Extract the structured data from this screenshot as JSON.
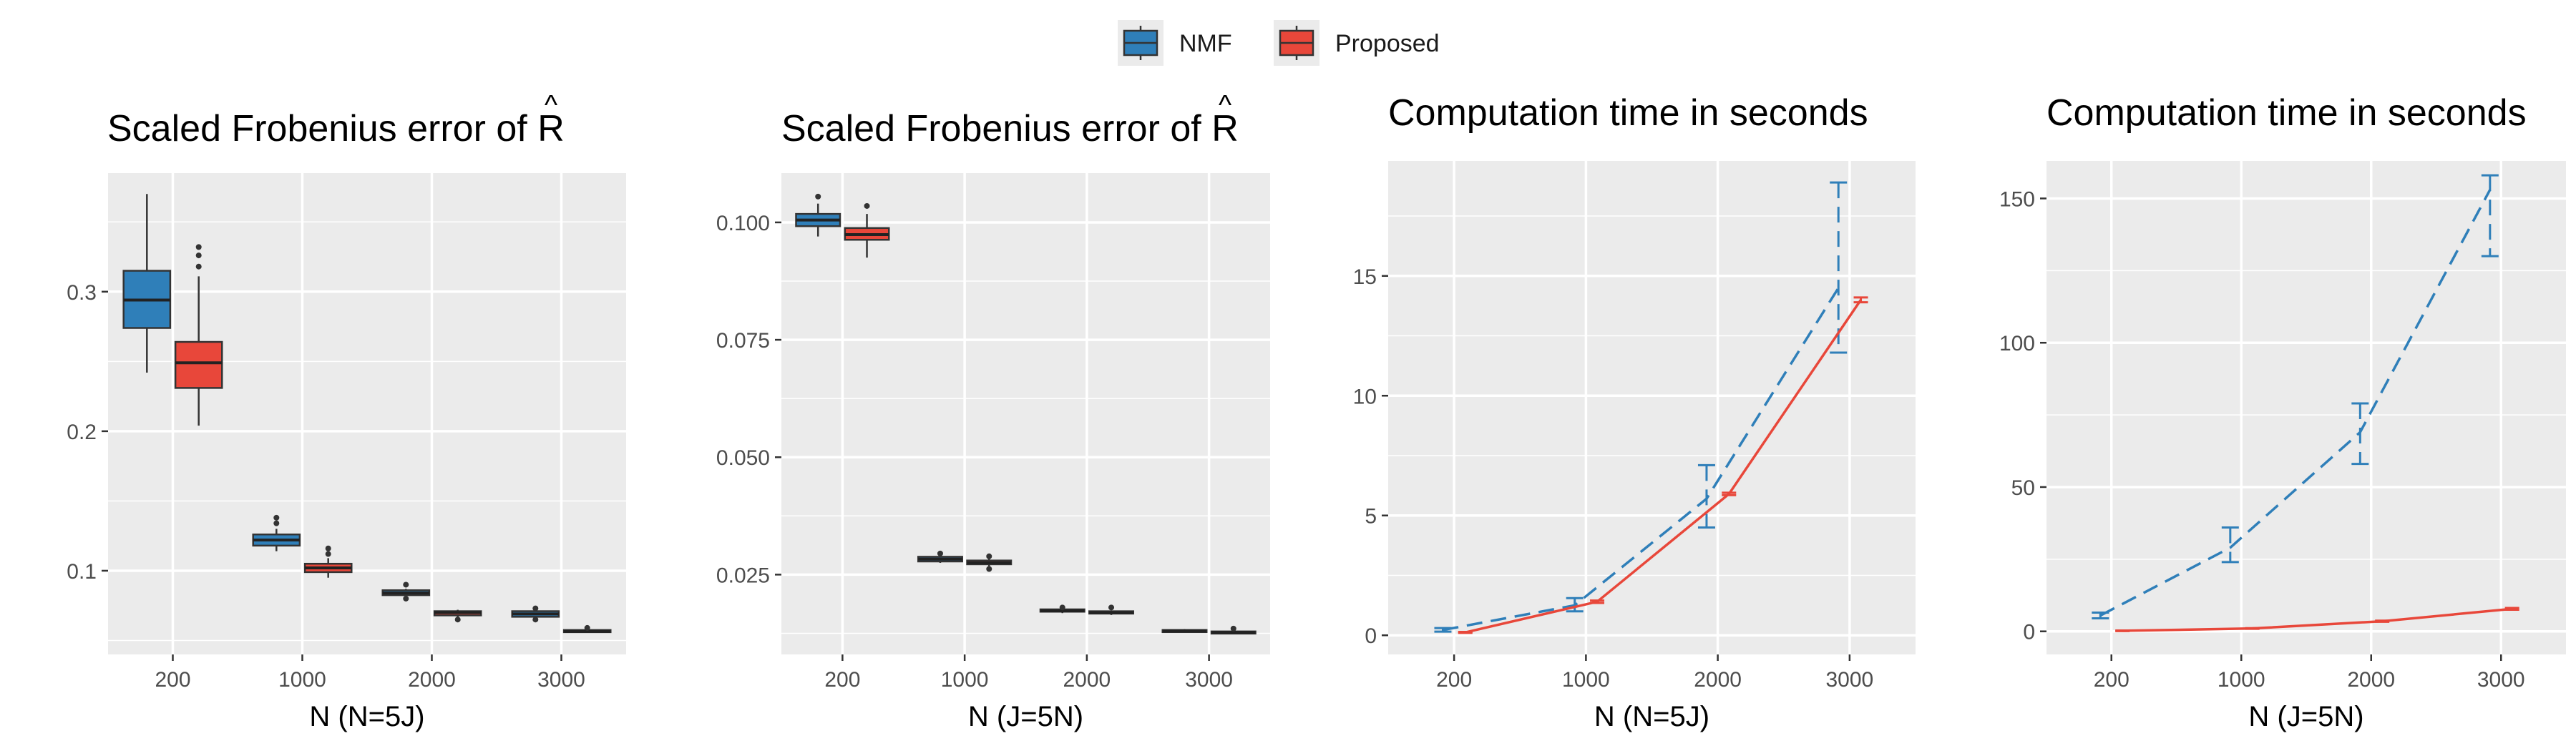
{
  "colors": {
    "nmf": "#2f7fb9",
    "proposed": "#e8473a",
    "panel_bg": "#ebebeb",
    "grid": "#ffffff"
  },
  "legend": {
    "items": [
      {
        "label": "NMF",
        "color": "#2f7fb9"
      },
      {
        "label": "Proposed",
        "color": "#e8473a"
      }
    ]
  },
  "panels": [
    {
      "title_text": "Scaled Frobenius error of ",
      "title_symbol": "R",
      "title_symbol_hat": "^",
      "xlabel": "N (N=5J)"
    },
    {
      "title_text": "Scaled Frobenius error of ",
      "title_symbol": "R",
      "title_symbol_hat": "^",
      "xlabel": "N (J=5N)"
    },
    {
      "title_text": "Computation time in seconds",
      "xlabel": "N (N=5J)"
    },
    {
      "title_text": "Computation time in seconds",
      "xlabel": "N (J=5N)"
    }
  ],
  "chart_data": [
    {
      "type": "box",
      "title": "Scaled Frobenius error of R̂",
      "xlabel": "N (N=5J)",
      "categories": [
        "200",
        "1000",
        "2000",
        "3000"
      ],
      "ylim": [
        0.04,
        0.385
      ],
      "yticks": [
        0.1,
        0.2,
        0.3
      ],
      "ytick_labels": [
        "0.1",
        "0.2",
        "0.3"
      ],
      "grid": true,
      "series": [
        {
          "name": "NMF",
          "boxes": [
            {
              "min": 0.242,
              "q1": 0.274,
              "median": 0.294,
              "q3": 0.315,
              "max": 0.37,
              "outliers": []
            },
            {
              "min": 0.114,
              "q1": 0.118,
              "median": 0.122,
              "q3": 0.126,
              "max": 0.13,
              "outliers": [
                0.134,
                0.138
              ]
            },
            {
              "min": 0.082,
              "q1": 0.0825,
              "median": 0.084,
              "q3": 0.086,
              "max": 0.087,
              "outliers": [
                0.08,
                0.09
              ]
            },
            {
              "min": 0.066,
              "q1": 0.067,
              "median": 0.069,
              "q3": 0.071,
              "max": 0.072,
              "outliers": [
                0.065,
                0.073
              ]
            }
          ]
        },
        {
          "name": "Proposed",
          "boxes": [
            {
              "min": 0.204,
              "q1": 0.231,
              "median": 0.249,
              "q3": 0.264,
              "max": 0.311,
              "outliers": [
                0.318,
                0.326,
                0.332
              ]
            },
            {
              "min": 0.095,
              "q1": 0.099,
              "median": 0.102,
              "q3": 0.105,
              "max": 0.109,
              "outliers": [
                0.112,
                0.116
              ]
            },
            {
              "min": 0.066,
              "q1": 0.068,
              "median": 0.07,
              "q3": 0.071,
              "max": 0.072,
              "outliers": [
                0.065
              ]
            },
            {
              "min": 0.0555,
              "q1": 0.056,
              "median": 0.0565,
              "q3": 0.0575,
              "max": 0.058,
              "outliers": [
                0.059
              ]
            }
          ]
        }
      ]
    },
    {
      "type": "box",
      "title": "Scaled Frobenius error of R̂",
      "xlabel": "N (J=5N)",
      "categories": [
        "200",
        "1000",
        "2000",
        "3000"
      ],
      "ylim": [
        0.008,
        0.1105
      ],
      "yticks": [
        0.025,
        0.05,
        0.075,
        0.1
      ],
      "ytick_labels": [
        "0.025",
        "0.050",
        "0.075",
        "0.100"
      ],
      "grid": true,
      "series": [
        {
          "name": "NMF",
          "boxes": [
            {
              "min": 0.097,
              "q1": 0.0992,
              "median": 0.1005,
              "q3": 0.1018,
              "max": 0.104,
              "outliers": [
                0.1055
              ]
            },
            {
              "min": 0.0275,
              "q1": 0.0278,
              "median": 0.0283,
              "q3": 0.0288,
              "max": 0.029,
              "outliers": [
                0.0295
              ]
            },
            {
              "min": 0.0168,
              "q1": 0.0171,
              "median": 0.0173,
              "q3": 0.0176,
              "max": 0.0178,
              "outliers": [
                0.018
              ]
            },
            {
              "min": 0.0128,
              "q1": 0.0129,
              "median": 0.013,
              "q3": 0.0132,
              "max": 0.0134,
              "outliers": []
            }
          ]
        },
        {
          "name": "Proposed",
          "boxes": [
            {
              "min": 0.0925,
              "q1": 0.0963,
              "median": 0.0974,
              "q3": 0.0988,
              "max": 0.1018,
              "outliers": [
                0.1035
              ]
            },
            {
              "min": 0.0268,
              "q1": 0.0272,
              "median": 0.0275,
              "q3": 0.028,
              "max": 0.0284,
              "outliers": [
                0.0289,
                0.0262
              ]
            },
            {
              "min": 0.0164,
              "q1": 0.0167,
              "median": 0.0169,
              "q3": 0.0172,
              "max": 0.0174,
              "outliers": [
                0.018
              ]
            },
            {
              "min": 0.0123,
              "q1": 0.0125,
              "median": 0.0127,
              "q3": 0.0129,
              "max": 0.0131,
              "outliers": [
                0.0135
              ]
            }
          ]
        }
      ]
    },
    {
      "type": "line",
      "title": "Computation time in seconds",
      "xlabel": "N (N=5J)",
      "categories": [
        "200",
        "1000",
        "2000",
        "3000"
      ],
      "ylim": [
        -0.8,
        19.8
      ],
      "yticks": [
        0,
        5,
        10,
        15
      ],
      "ytick_labels": [
        "0",
        "5",
        "10",
        "15"
      ],
      "grid": true,
      "series": [
        {
          "name": "NMF",
          "line": "dashed",
          "values": [
            0.22,
            1.25,
            5.7,
            14.5
          ],
          "err_low": [
            0.15,
            1.0,
            4.5,
            11.8
          ],
          "err_high": [
            0.3,
            1.55,
            7.1,
            18.9
          ]
        },
        {
          "name": "Proposed",
          "line": "solid",
          "values": [
            0.12,
            1.4,
            5.9,
            14.0
          ],
          "err_low": [
            0.1,
            1.35,
            5.85,
            13.9
          ],
          "err_high": [
            0.14,
            1.45,
            5.95,
            14.1
          ]
        }
      ]
    },
    {
      "type": "line",
      "title": "Computation time in seconds",
      "xlabel": "N (J=5N)",
      "categories": [
        "200",
        "1000",
        "2000",
        "3000"
      ],
      "ylim": [
        -8,
        163
      ],
      "yticks": [
        0,
        50,
        100,
        150
      ],
      "ytick_labels": [
        "0",
        "50",
        "100",
        "150"
      ],
      "grid": true,
      "series": [
        {
          "name": "NMF",
          "line": "dashed",
          "values": [
            5.5,
            29,
            69,
            153
          ],
          "err_low": [
            4.5,
            24,
            58,
            130
          ],
          "err_high": [
            6.5,
            36,
            79,
            158
          ]
        },
        {
          "name": "Proposed",
          "line": "solid",
          "values": [
            0.2,
            1.0,
            3.5,
            7.8
          ],
          "err_low": [
            0.1,
            0.9,
            3.3,
            7.5
          ],
          "err_high": [
            0.3,
            1.1,
            3.7,
            8.1
          ]
        }
      ]
    }
  ]
}
